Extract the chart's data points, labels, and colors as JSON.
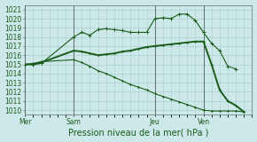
{
  "title": "Pression niveau de la mer( hPa )",
  "bg_color": "#cde8e8",
  "grid_color": "#aacfcf",
  "line_color": "#1a5c1a",
  "ylim": [
    1009.5,
    1021.5
  ],
  "yticks": [
    1010,
    1011,
    1012,
    1013,
    1014,
    1015,
    1016,
    1017,
    1018,
    1019,
    1020,
    1021
  ],
  "day_labels": [
    "Mer",
    "Sam",
    "Jeu",
    "Ven"
  ],
  "day_positions": [
    0,
    6,
    16,
    22
  ],
  "xmax": 28,
  "series1_x": [
    0,
    1,
    2,
    6,
    7,
    8,
    9,
    10,
    11,
    12,
    13,
    14,
    15,
    16,
    17,
    18,
    19,
    20,
    21,
    22,
    23,
    24,
    25,
    26
  ],
  "series1_y": [
    1015.0,
    1015.0,
    1015.1,
    1018.0,
    1018.5,
    1018.2,
    1018.8,
    1018.9,
    1018.8,
    1018.7,
    1018.5,
    1018.5,
    1018.5,
    1020.0,
    1020.1,
    1020.0,
    1020.5,
    1020.5,
    1019.8,
    1018.5,
    1017.3,
    1016.5,
    1014.8,
    1014.5
  ],
  "series2_x": [
    0,
    1,
    2,
    6,
    7,
    8,
    9,
    10,
    11,
    12,
    13,
    14,
    15,
    16,
    17,
    18,
    19,
    20,
    21,
    22,
    23,
    24,
    25,
    26,
    27
  ],
  "series2_y": [
    1015.0,
    1015.0,
    1015.2,
    1016.5,
    1016.4,
    1016.2,
    1016.0,
    1016.1,
    1016.2,
    1016.4,
    1016.5,
    1016.7,
    1016.9,
    1017.0,
    1017.1,
    1017.2,
    1017.3,
    1017.4,
    1017.5,
    1017.5,
    1015.0,
    1012.2,
    1011.0,
    1010.5,
    1009.8
  ],
  "series3_x": [
    0,
    1,
    2,
    6,
    7,
    8,
    9,
    10,
    11,
    12,
    13,
    14,
    15,
    16,
    17,
    18,
    19,
    20,
    21,
    22,
    23,
    24,
    25,
    26,
    27
  ],
  "series3_y": [
    1015.0,
    1015.1,
    1015.3,
    1015.5,
    1015.2,
    1014.8,
    1014.3,
    1014.0,
    1013.6,
    1013.2,
    1012.8,
    1012.5,
    1012.2,
    1011.8,
    1011.5,
    1011.2,
    1010.9,
    1010.6,
    1010.3,
    1010.0,
    1009.9,
    1009.9,
    1009.9,
    1009.9,
    1009.8
  ],
  "tick_fontsize": 5.5,
  "xlabel_fontsize": 7.0
}
